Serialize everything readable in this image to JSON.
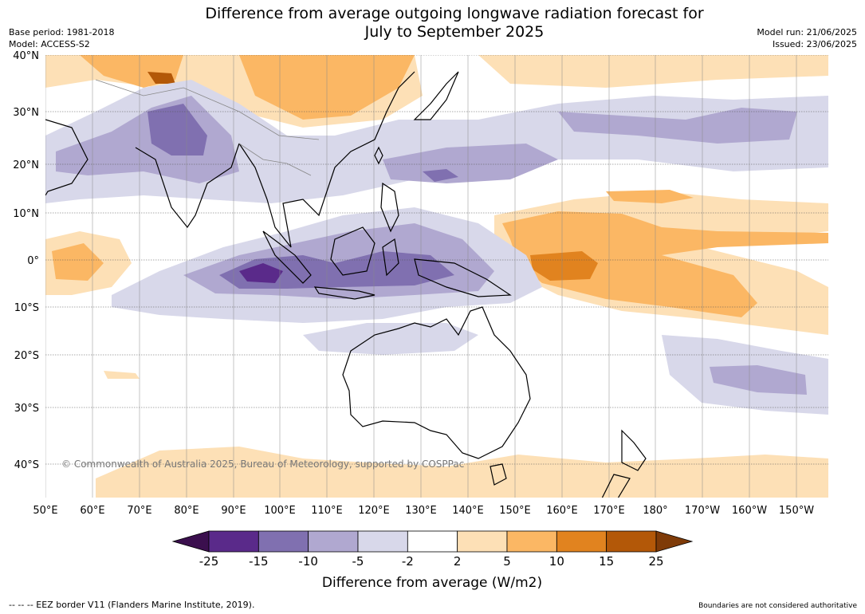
{
  "header": {
    "title_line1": "Difference from average outgoing longwave radiation forecast for",
    "title_line2": "July to September 2025",
    "base_period": "Base period: 1981-2018",
    "model": "Model: ACCESS-S2",
    "model_run": "Model run: 21/06/2025",
    "issued": "Issued: 23/06/2025"
  },
  "map": {
    "lat_labels": [
      "40°N",
      "30°N",
      "20°N",
      "10°N",
      "0°",
      "10°S",
      "20°S",
      "30°S",
      "40°S"
    ],
    "lon_labels": [
      "50°E",
      "60°E",
      "70°E",
      "80°E",
      "90°E",
      "100°E",
      "110°E",
      "120°E",
      "130°E",
      "140°E",
      "150°E",
      "160°E",
      "170°E",
      "180°",
      "170°W",
      "160°W",
      "150°W"
    ],
    "copyright": "© Commonwealth of Australia 2025, Bureau of Meteorology, supported by COSPPac"
  },
  "colorbar": {
    "ticks": [
      "-25",
      "-15",
      "-10",
      "-5",
      "-2",
      "2",
      "5",
      "10",
      "15",
      "25"
    ],
    "colors": [
      "#3b0f4e",
      "#5a2a8a",
      "#8070b0",
      "#b0a8d0",
      "#d8d8ea",
      "#ffffff",
      "#fde0b6",
      "#fbb764",
      "#e1831f",
      "#b35808",
      "#7f3b08"
    ],
    "label": "Difference from average (W/m2)"
  },
  "footer": {
    "eez": "--  --  -- EEZ border V11 (Flanders Marine Institute, 2019).",
    "disclaimer": "Boundaries are not considered authoritative"
  }
}
